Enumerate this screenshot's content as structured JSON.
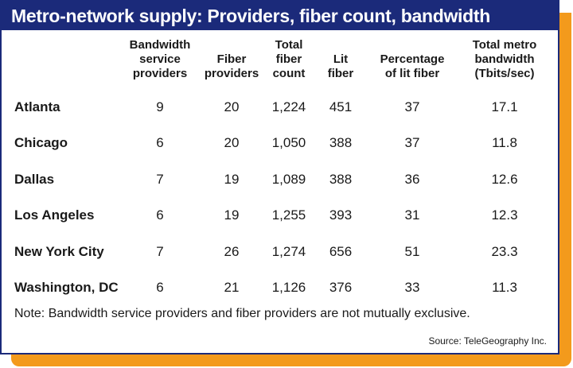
{
  "title": "Metro-network supply: Providers, fiber count, bandwidth",
  "columns": [
    "",
    "Bandwidth\nservice\nproviders",
    "Fiber\nproviders",
    "Total\nfiber\ncount",
    "Lit\nfiber",
    "Percentage\nof lit fiber",
    "Total metro\nbandwidth\n(Tbits/sec)"
  ],
  "rows": [
    {
      "city": "Atlanta",
      "bandwidth_providers": "9",
      "fiber_providers": "20",
      "total_fiber": "1,224",
      "lit_fiber": "451",
      "pct_lit": "37",
      "total_bandwidth": "17.1"
    },
    {
      "city": "Chicago",
      "bandwidth_providers": "6",
      "fiber_providers": "20",
      "total_fiber": "1,050",
      "lit_fiber": "388",
      "pct_lit": "37",
      "total_bandwidth": "11.8"
    },
    {
      "city": "Dallas",
      "bandwidth_providers": "7",
      "fiber_providers": "19",
      "total_fiber": "1,089",
      "lit_fiber": "388",
      "pct_lit": "36",
      "total_bandwidth": "12.6"
    },
    {
      "city": "Los Angeles",
      "bandwidth_providers": "6",
      "fiber_providers": "19",
      "total_fiber": "1,255",
      "lit_fiber": "393",
      "pct_lit": "31",
      "total_bandwidth": "12.3"
    },
    {
      "city": "New York City",
      "bandwidth_providers": "7",
      "fiber_providers": "26",
      "total_fiber": "1,274",
      "lit_fiber": "656",
      "pct_lit": "51",
      "total_bandwidth": "23.3"
    },
    {
      "city": "Washington, DC",
      "bandwidth_providers": "6",
      "fiber_providers": "21",
      "total_fiber": "1,126",
      "lit_fiber": "376",
      "pct_lit": "33",
      "total_bandwidth": "11.3"
    }
  ],
  "note": "Note: Bandwidth service providers and fiber providers are not mutually exclusive.",
  "source": "Source: TeleGeography Inc.",
  "colors": {
    "title_bar": "#1b2a7a",
    "accent_shadow": "#f39a1c",
    "text": "#1a1a1a"
  }
}
